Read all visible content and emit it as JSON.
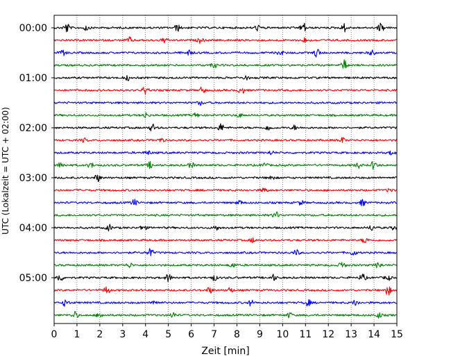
{
  "chart_data": {
    "type": "line",
    "title": "",
    "xlabel": "Zeit  [min]",
    "ylabel": "UTC (Lokalzeit = UTC + 02:00)",
    "xlim": [
      0,
      15
    ],
    "x_ticks": [
      0,
      1,
      2,
      3,
      4,
      5,
      6,
      7,
      8,
      9,
      10,
      11,
      12,
      13,
      14,
      15
    ],
    "x_tick_labels": [
      "0",
      "1",
      "2",
      "3",
      "4",
      "5",
      "6",
      "7",
      "8",
      "9",
      "10",
      "11",
      "12",
      "13",
      "14",
      "15"
    ],
    "y_tick_labels": [
      "00:00",
      "01:00",
      "02:00",
      "03:00",
      "04:00",
      "05:00"
    ],
    "trace_interval_min": 15,
    "trace_start_labels": [
      "00:00",
      "00:15",
      "00:30",
      "00:45",
      "01:00",
      "01:15",
      "01:30",
      "01:45",
      "02:00",
      "02:15",
      "02:30",
      "02:45",
      "03:00",
      "03:15",
      "03:30",
      "03:45",
      "04:00",
      "04:15",
      "04:30",
      "04:45",
      "05:00",
      "05:15",
      "05:30",
      "05:45"
    ],
    "color_cycle": [
      "#000000",
      "#ff0000",
      "#0000ff",
      "#008000"
    ],
    "grid": {
      "x": "dotted vertical at each minute",
      "y": false
    },
    "series": [
      {
        "row": 0,
        "events": [
          [
            0.55,
            1.6
          ],
          [
            1.4,
            0.9
          ],
          [
            5.4,
            1.1
          ],
          [
            8.9,
            0.9
          ],
          [
            10.9,
            1.7
          ],
          [
            12.7,
            1.3
          ],
          [
            14.3,
            1.6
          ]
        ]
      },
      {
        "row": 1,
        "events": [
          [
            3.3,
            0.9
          ],
          [
            4.8,
            0.8
          ],
          [
            6.4,
            0.9
          ],
          [
            11.0,
            0.8
          ]
        ]
      },
      {
        "row": 2,
        "events": [
          [
            0.4,
            0.8
          ],
          [
            5.9,
            0.9
          ],
          [
            9.9,
            0.8
          ],
          [
            11.5,
            1.5
          ],
          [
            13.9,
            0.8
          ]
        ]
      },
      {
        "row": 3,
        "events": [
          [
            7.0,
            0.8
          ],
          [
            12.7,
            1.7
          ]
        ]
      },
      {
        "row": 4,
        "events": [
          [
            3.2,
            0.8
          ],
          [
            8.4,
            0.7
          ]
        ]
      },
      {
        "row": 5,
        "events": [
          [
            4.0,
            1.5
          ],
          [
            6.5,
            1.1
          ],
          [
            8.2,
            1.2
          ]
        ]
      },
      {
        "row": 6,
        "events": [
          [
            6.4,
            0.7
          ]
        ]
      },
      {
        "row": 7,
        "events": [
          [
            4.0,
            0.9
          ],
          [
            6.2,
            0.7
          ],
          [
            8.1,
            0.6
          ]
        ]
      },
      {
        "row": 8,
        "events": [
          [
            4.3,
            1.2
          ],
          [
            7.3,
            1.3
          ],
          [
            9.4,
            1.0
          ],
          [
            10.5,
            0.7
          ]
        ]
      },
      {
        "row": 9,
        "events": [
          [
            1.3,
            0.6
          ],
          [
            4.7,
            0.7
          ],
          [
            12.6,
            0.9
          ]
        ]
      },
      {
        "row": 10,
        "events": [
          [
            4.1,
            0.7
          ],
          [
            9.5,
            0.6
          ],
          [
            14.8,
            0.8
          ]
        ]
      },
      {
        "row": 11,
        "events": [
          [
            0.3,
            1.0
          ],
          [
            1.6,
            0.9
          ],
          [
            4.2,
            1.0
          ],
          [
            6.0,
            0.9
          ],
          [
            9.2,
            0.8
          ],
          [
            13.3,
            0.9
          ],
          [
            14.0,
            1.5
          ]
        ]
      },
      {
        "row": 12,
        "events": [
          [
            1.9,
            1.2
          ],
          [
            9.5,
            0.8
          ]
        ]
      },
      {
        "row": 13,
        "events": [
          [
            9.2,
            0.8
          ],
          [
            14.7,
            0.7
          ]
        ]
      },
      {
        "row": 14,
        "events": [
          [
            3.5,
            1.1
          ],
          [
            8.1,
            0.8
          ],
          [
            13.5,
            1.0
          ],
          [
            10.8,
            0.7
          ]
        ]
      },
      {
        "row": 15,
        "events": [
          [
            9.7,
            1.1
          ]
        ]
      },
      {
        "row": 16,
        "events": [
          [
            2.4,
            1.0
          ],
          [
            3.9,
            1.0
          ],
          [
            7.1,
            0.8
          ],
          [
            13.9,
            0.9
          ],
          [
            14.9,
            0.8
          ]
        ]
      },
      {
        "row": 17,
        "events": [
          [
            8.7,
            0.8
          ],
          [
            13.6,
            1.0
          ]
        ]
      },
      {
        "row": 18,
        "events": [
          [
            4.2,
            1.5
          ],
          [
            10.6,
            0.9
          ],
          [
            13.1,
            0.9
          ]
        ]
      },
      {
        "row": 19,
        "events": [
          [
            3.3,
            0.8
          ],
          [
            7.8,
            0.8
          ],
          [
            12.6,
            1.2
          ],
          [
            14.2,
            1.1
          ]
        ]
      },
      {
        "row": 20,
        "events": [
          [
            0.25,
            1.3
          ],
          [
            5.0,
            1.3
          ],
          [
            7.0,
            0.9
          ],
          [
            9.6,
            1.0
          ],
          [
            13.5,
            1.3
          ],
          [
            14.6,
            0.9
          ]
        ]
      },
      {
        "row": 21,
        "events": [
          [
            2.3,
            1.3
          ],
          [
            6.8,
            1.0
          ],
          [
            7.7,
            0.9
          ],
          [
            14.6,
            1.6
          ]
        ]
      },
      {
        "row": 22,
        "events": [
          [
            0.5,
            1.2
          ],
          [
            4.4,
            1.0
          ],
          [
            8.6,
            0.9
          ],
          [
            11.1,
            1.1
          ],
          [
            13.2,
            1.0
          ]
        ]
      },
      {
        "row": 23,
        "events": [
          [
            0.9,
            1.2
          ],
          [
            2.0,
            0.9
          ],
          [
            5.2,
            1.0
          ],
          [
            10.3,
            0.8
          ],
          [
            14.2,
            0.9
          ]
        ]
      }
    ]
  }
}
